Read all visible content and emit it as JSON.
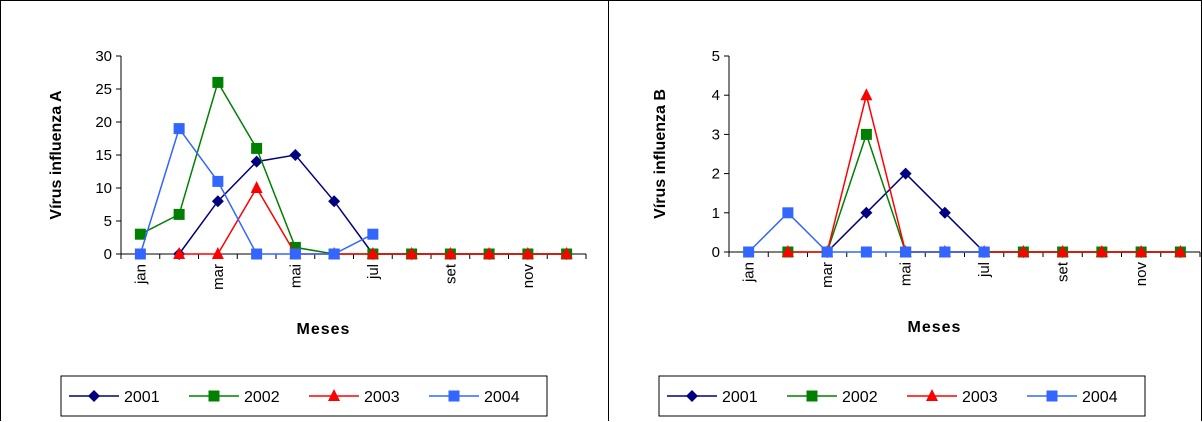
{
  "chart_data": [
    {
      "type": "line",
      "xlabel": "Meses",
      "ylabel": "Vírus influenza A",
      "ylim": [
        0,
        30
      ],
      "yticks": [
        0,
        5,
        10,
        15,
        20,
        25,
        30
      ],
      "months": [
        "jan",
        "fev",
        "mar",
        "abr",
        "mai",
        "jun",
        "jul",
        "ago",
        "set",
        "out",
        "nov",
        "dez"
      ],
      "xtick_labels": [
        "jan",
        "",
        "mar",
        "",
        "mai",
        "",
        "jul",
        "",
        "set",
        "",
        "nov",
        ""
      ],
      "legend_placement": "bottom",
      "grid": false,
      "series": [
        {
          "name": "2001",
          "color": "#000080",
          "marker": "diamond",
          "values": [
            null,
            0,
            8,
            14,
            15,
            8,
            0,
            0,
            0,
            0,
            0,
            0
          ]
        },
        {
          "name": "2002",
          "color": "#008000",
          "marker": "square",
          "values": [
            3,
            6,
            26,
            16,
            1,
            0,
            0,
            0,
            0,
            0,
            0,
            0
          ]
        },
        {
          "name": "2003",
          "color": "#ff0000",
          "marker": "triangle",
          "values": [
            null,
            0,
            0,
            10,
            0,
            0,
            0,
            0,
            0,
            0,
            0,
            0
          ]
        },
        {
          "name": "2004",
          "color": "#3366ff",
          "marker": "square",
          "values": [
            0,
            19,
            11,
            0,
            0,
            0,
            3,
            null,
            null,
            null,
            null,
            null
          ]
        }
      ]
    },
    {
      "type": "line",
      "xlabel": "Meses",
      "ylabel": "Vírus influenza B",
      "ylim": [
        0,
        5
      ],
      "yticks": [
        0,
        1,
        2,
        3,
        4,
        5
      ],
      "months": [
        "jan",
        "fev",
        "mar",
        "abr",
        "mai",
        "jun",
        "jul",
        "ago",
        "set",
        "out",
        "nov",
        "dez"
      ],
      "xtick_labels": [
        "jan",
        "",
        "mar",
        "",
        "mai",
        "",
        "jul",
        "",
        "set",
        "",
        "nov",
        ""
      ],
      "legend_placement": "bottom",
      "grid": false,
      "series": [
        {
          "name": "2001",
          "color": "#000080",
          "marker": "diamond",
          "values": [
            null,
            null,
            0,
            1,
            2,
            1,
            0,
            0,
            0,
            0,
            0,
            0
          ]
        },
        {
          "name": "2002",
          "color": "#008000",
          "marker": "square",
          "values": [
            null,
            0,
            0,
            3,
            0,
            0,
            0,
            0,
            0,
            0,
            0,
            0
          ]
        },
        {
          "name": "2003",
          "color": "#ff0000",
          "marker": "triangle",
          "values": [
            null,
            0,
            0,
            4,
            0,
            0,
            0,
            0,
            0,
            0,
            0,
            0
          ]
        },
        {
          "name": "2004",
          "color": "#3366ff",
          "marker": "square",
          "values": [
            0,
            1,
            0,
            0,
            0,
            0,
            0,
            null,
            null,
            null,
            null,
            null
          ]
        }
      ]
    }
  ]
}
